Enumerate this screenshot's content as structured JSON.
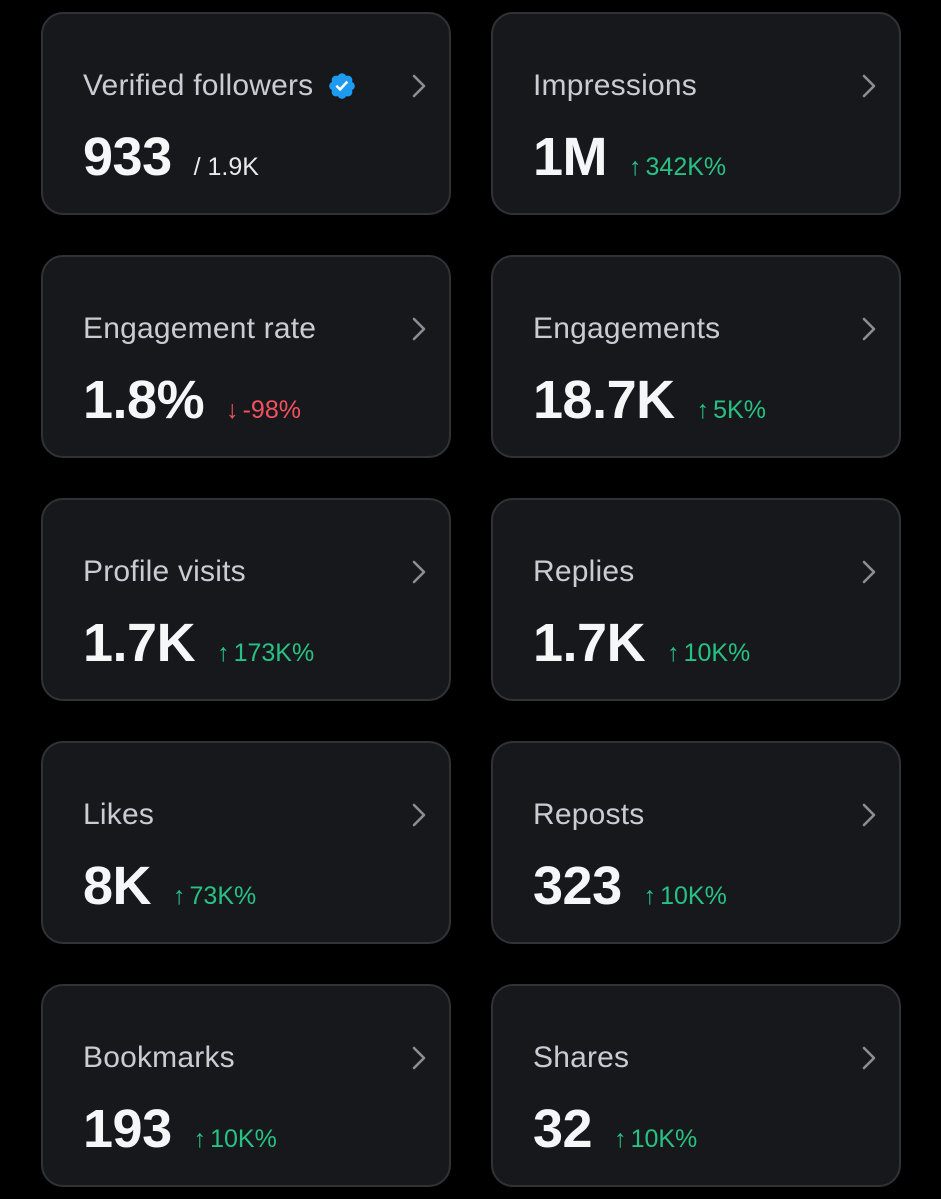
{
  "cards": [
    {
      "label": "Verified followers",
      "value": "933",
      "sub": "/ 1.9K",
      "verified": true
    },
    {
      "label": "Impressions",
      "value": "1M",
      "delta": "342K%",
      "direction": "up",
      "arrow": "↑"
    },
    {
      "label": "Engagement rate",
      "value": "1.8%",
      "delta": "-98%",
      "direction": "down",
      "arrow": "↓"
    },
    {
      "label": "Engagements",
      "value": "18.7K",
      "delta": "5K%",
      "direction": "up",
      "arrow": "↑"
    },
    {
      "label": "Profile visits",
      "value": "1.7K",
      "delta": "173K%",
      "direction": "up",
      "arrow": "↑"
    },
    {
      "label": "Replies",
      "value": "1.7K",
      "delta": "10K%",
      "direction": "up",
      "arrow": "↑"
    },
    {
      "label": "Likes",
      "value": "8K",
      "delta": "73K%",
      "direction": "up",
      "arrow": "↑"
    },
    {
      "label": "Reposts",
      "value": "323",
      "delta": "10K%",
      "direction": "up",
      "arrow": "↑"
    },
    {
      "label": "Bookmarks",
      "value": "193",
      "delta": "10K%",
      "direction": "up",
      "arrow": "↑"
    },
    {
      "label": "Shares",
      "value": "32",
      "delta": "10K%",
      "direction": "up",
      "arrow": "↑"
    }
  ],
  "icons": {
    "verified": "verified-badge-icon",
    "chevron": "chevron-right-icon",
    "up": "arrow-up-icon",
    "down": "arrow-down-icon"
  },
  "colors": {
    "background": "#000000",
    "card": "#16181c",
    "card_border": "#2f3336",
    "label": "#c9ccd1",
    "value": "#f5f6f7",
    "positive": "#27c283",
    "negative": "#f4515f",
    "verified": "#1d9bf0"
  }
}
